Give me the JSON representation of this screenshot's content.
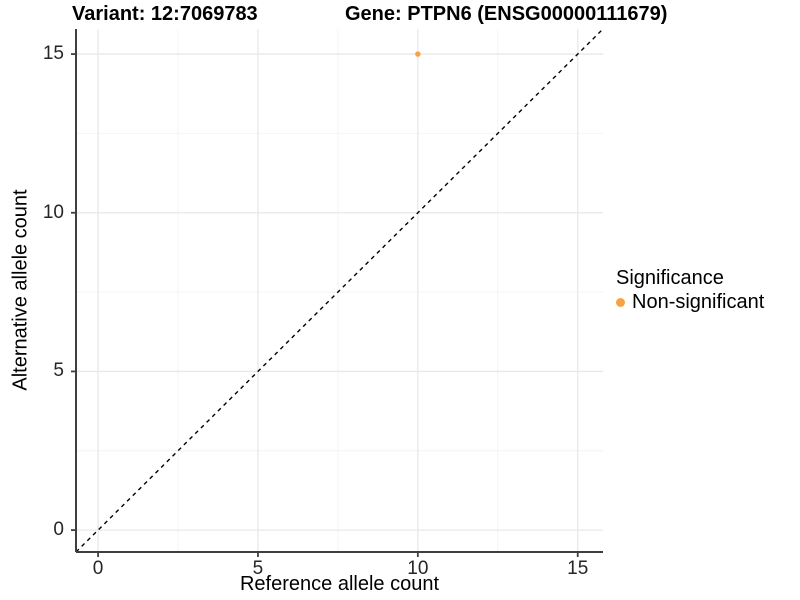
{
  "chart_data": {
    "type": "scatter",
    "titles": {
      "left": "Variant: 12:7069783",
      "right": "Gene: PTPN6 (ENSG00000111679)"
    },
    "xlabel": "Reference allele count",
    "ylabel": "Alternative allele count",
    "xlim": [
      -0.69,
      15.79
    ],
    "ylim": [
      -0.69,
      15.79
    ],
    "x_ticks": [
      0,
      5,
      10,
      15
    ],
    "y_ticks": [
      0,
      5,
      10,
      15
    ],
    "x_minor_ticks": [
      2.5,
      7.5,
      12.5
    ],
    "y_minor_ticks": [
      2.5,
      7.5,
      12.5
    ],
    "grid": "major+minor",
    "points": [
      {
        "x": 10,
        "y": 15,
        "series": "Non-significant"
      }
    ],
    "identity_line": {
      "from": [
        -0.69,
        -0.69
      ],
      "to": [
        15.79,
        15.79
      ],
      "style": "dashed",
      "color": "#000000"
    },
    "legend": {
      "title": "Significance",
      "position": "right",
      "entries": [
        {
          "label": "Non-significant",
          "color": "#F9A242"
        }
      ]
    },
    "colors": {
      "point": "#F9A242",
      "grid_major": "#E8E8E8",
      "grid_minor": "#F4F4F4",
      "axis": "#3F3F3F",
      "tick_text": "#262626"
    }
  }
}
